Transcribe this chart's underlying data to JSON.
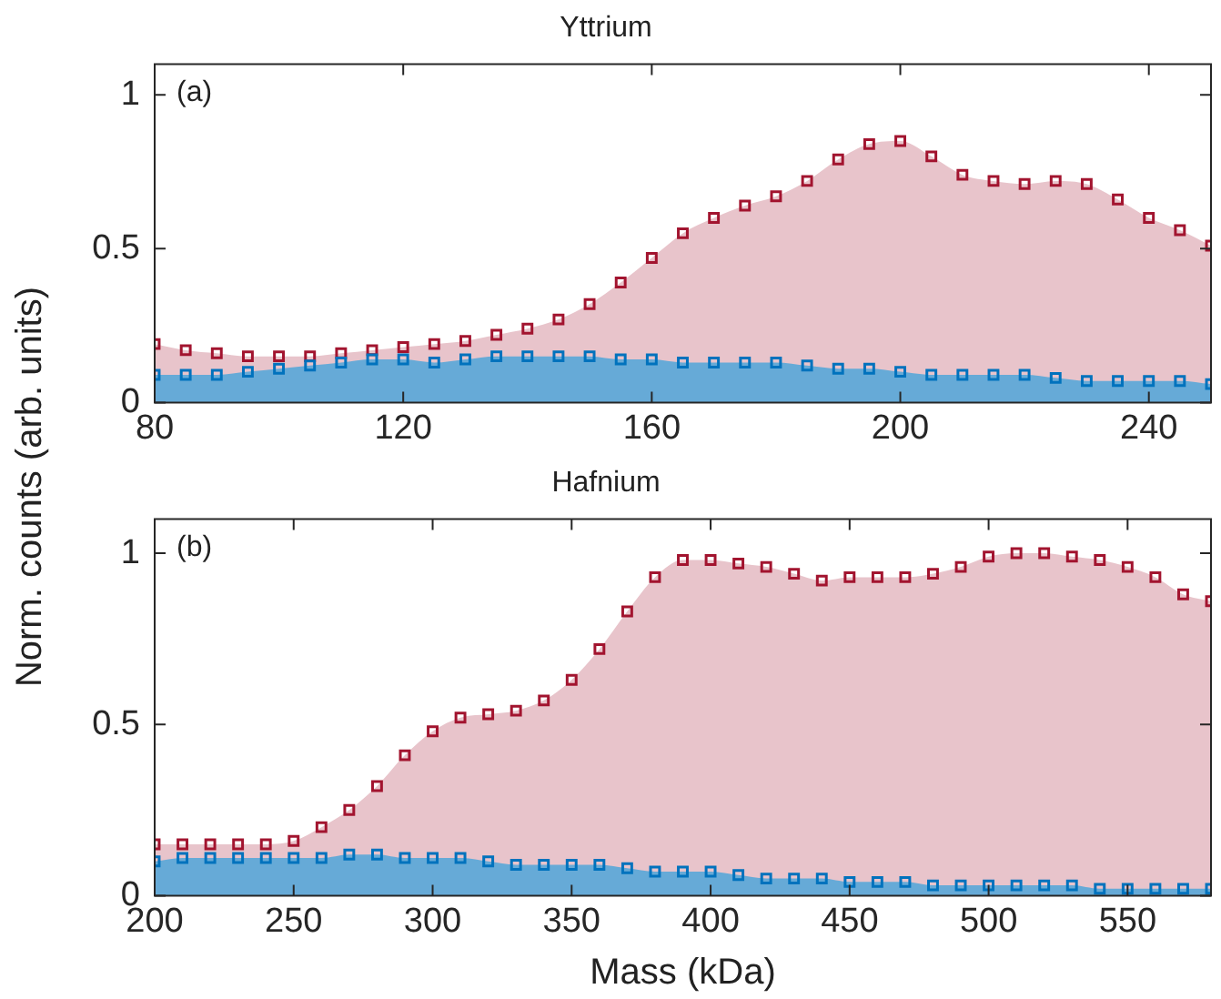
{
  "chart_data": [
    {
      "type": "area",
      "title": "Yttrium",
      "ylabel": "Norm. counts (arb. units)",
      "annotations": [
        "(a)"
      ],
      "marker": "square",
      "grid": false,
      "legend": false,
      "x": [
        80,
        85,
        90,
        95,
        100,
        105,
        110,
        115,
        120,
        125,
        130,
        135,
        140,
        145,
        150,
        155,
        160,
        165,
        170,
        175,
        180,
        185,
        190,
        195,
        200,
        205,
        210,
        215,
        220,
        225,
        230,
        235,
        240,
        245,
        250
      ],
      "xlim": [
        80,
        250
      ],
      "xticks": [
        80,
        120,
        160,
        200,
        240
      ],
      "ylim": [
        0,
        1.1
      ],
      "yticks": [
        0,
        0.5,
        1
      ],
      "series": [
        {
          "color": "#a2142f",
          "values": [
            0.19,
            0.17,
            0.16,
            0.15,
            0.15,
            0.15,
            0.16,
            0.17,
            0.18,
            0.19,
            0.2,
            0.22,
            0.24,
            0.27,
            0.32,
            0.39,
            0.47,
            0.55,
            0.6,
            0.64,
            0.67,
            0.72,
            0.79,
            0.84,
            0.85,
            0.8,
            0.74,
            0.72,
            0.71,
            0.72,
            0.71,
            0.66,
            0.6,
            0.56,
            0.51
          ]
        },
        {
          "color": "#0072bd",
          "values": [
            0.09,
            0.09,
            0.09,
            0.1,
            0.11,
            0.12,
            0.13,
            0.14,
            0.14,
            0.13,
            0.14,
            0.15,
            0.15,
            0.15,
            0.15,
            0.14,
            0.14,
            0.13,
            0.13,
            0.13,
            0.13,
            0.12,
            0.11,
            0.11,
            0.1,
            0.09,
            0.09,
            0.09,
            0.09,
            0.08,
            0.07,
            0.07,
            0.07,
            0.07,
            0.06
          ]
        }
      ]
    },
    {
      "type": "area",
      "title": "Hafnium",
      "xlabel": "Mass (kDa)",
      "annotations": [
        "(b)"
      ],
      "marker": "square",
      "grid": false,
      "legend": false,
      "x": [
        200,
        210,
        220,
        230,
        240,
        250,
        260,
        270,
        280,
        290,
        300,
        310,
        320,
        330,
        340,
        350,
        360,
        370,
        380,
        390,
        400,
        410,
        420,
        430,
        440,
        450,
        460,
        470,
        480,
        490,
        500,
        510,
        520,
        530,
        540,
        550,
        560,
        570,
        580
      ],
      "xlim": [
        200,
        580
      ],
      "xticks": [
        200,
        250,
        300,
        350,
        400,
        450,
        500,
        550
      ],
      "ylim": [
        0,
        1.1
      ],
      "yticks": [
        0,
        0.5,
        1
      ],
      "series": [
        {
          "color": "#a2142f",
          "values": [
            0.15,
            0.15,
            0.15,
            0.15,
            0.15,
            0.16,
            0.2,
            0.25,
            0.32,
            0.41,
            0.48,
            0.52,
            0.53,
            0.54,
            0.57,
            0.63,
            0.72,
            0.83,
            0.93,
            0.98,
            0.98,
            0.97,
            0.96,
            0.94,
            0.92,
            0.93,
            0.93,
            0.93,
            0.94,
            0.96,
            0.99,
            1.0,
            1.0,
            0.99,
            0.98,
            0.96,
            0.93,
            0.88,
            0.86
          ]
        },
        {
          "color": "#0072bd",
          "values": [
            0.1,
            0.11,
            0.11,
            0.11,
            0.11,
            0.11,
            0.11,
            0.12,
            0.12,
            0.11,
            0.11,
            0.11,
            0.1,
            0.09,
            0.09,
            0.09,
            0.09,
            0.08,
            0.07,
            0.07,
            0.07,
            0.06,
            0.05,
            0.05,
            0.05,
            0.04,
            0.04,
            0.04,
            0.03,
            0.03,
            0.03,
            0.03,
            0.03,
            0.03,
            0.02,
            0.02,
            0.02,
            0.02,
            0.02
          ]
        }
      ]
    }
  ]
}
